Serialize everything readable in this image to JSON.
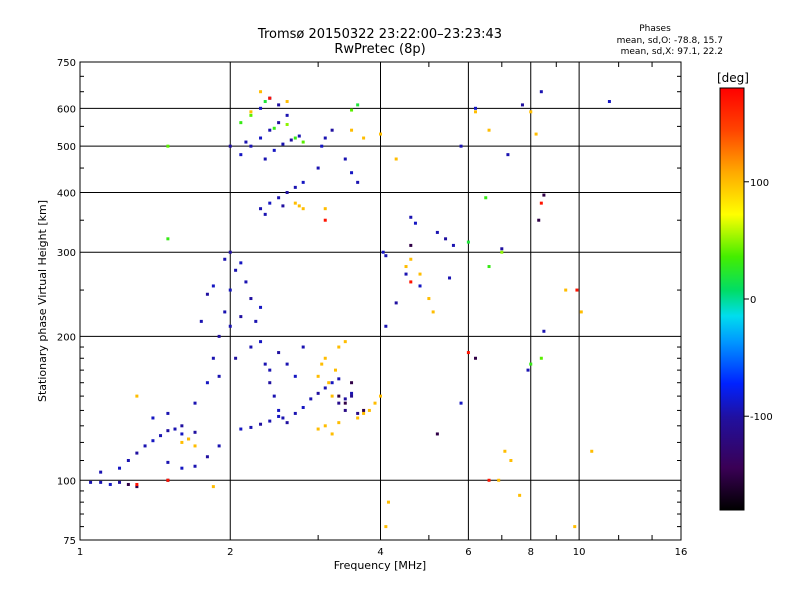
{
  "chart_data": {
    "type": "scatter",
    "title": "Tromsø 20150322 23:22:00–23:23:43",
    "subtitle": "RwPretec (8p)",
    "xlabel": "Frequency [MHz]",
    "ylabel": "Stationary phase Virtual Height [km]",
    "x_scale": "log",
    "y_scale": "log",
    "xlim": [
      1,
      16
    ],
    "ylim": [
      75,
      750
    ],
    "x_ticks": [
      1,
      2,
      4,
      6,
      8,
      10,
      16
    ],
    "y_ticks": [
      75,
      100,
      200,
      300,
      400,
      500,
      600,
      750
    ],
    "grid": true,
    "colorbar": {
      "label": "[deg]",
      "range": [
        -180,
        180
      ],
      "ticks": [
        100,
        0,
        -100
      ]
    },
    "legend": {
      "title": "Phases",
      "line1": "mean, sd,O: -78.8, 15.7",
      "line2": "mean, sd,X:  97.1, 22.2"
    },
    "series": [
      {
        "values": [
          [
            1.05,
            99,
            -95
          ],
          [
            1.1,
            99,
            -95
          ],
          [
            1.15,
            98,
            -90
          ],
          [
            1.2,
            99,
            -100
          ],
          [
            1.1,
            104,
            -95
          ],
          [
            1.2,
            106,
            -90
          ],
          [
            1.25,
            110,
            -95
          ],
          [
            1.3,
            114,
            -100
          ],
          [
            1.35,
            118,
            -95
          ],
          [
            1.4,
            121,
            -90
          ],
          [
            1.45,
            124,
            -95
          ],
          [
            1.5,
            127,
            -100
          ],
          [
            1.55,
            128,
            -95
          ],
          [
            1.6,
            125,
            -90
          ],
          [
            1.65,
            122,
            -95
          ],
          [
            1.7,
            126,
            -100
          ],
          [
            1.5,
            109,
            -95
          ],
          [
            1.6,
            106,
            -90
          ],
          [
            1.7,
            107,
            -95
          ],
          [
            1.8,
            112,
            -100
          ],
          [
            1.9,
            118,
            -95
          ],
          [
            1.4,
            135,
            -90
          ],
          [
            1.5,
            138,
            -95
          ],
          [
            1.6,
            130,
            -100
          ],
          [
            1.7,
            145,
            -95
          ],
          [
            1.8,
            160,
            -90
          ],
          [
            1.85,
            180,
            -95
          ],
          [
            1.9,
            200,
            -100
          ],
          [
            1.95,
            225,
            -95
          ],
          [
            2.0,
            250,
            -90
          ],
          [
            2.05,
            275,
            -95
          ],
          [
            2.0,
            300,
            -100
          ],
          [
            1.95,
            290,
            -95
          ],
          [
            2.1,
            285,
            -90
          ],
          [
            2.15,
            260,
            -95
          ],
          [
            2.2,
            240,
            -100
          ],
          [
            2.25,
            215,
            -95
          ],
          [
            2.3,
            195,
            -90
          ],
          [
            2.35,
            175,
            -95
          ],
          [
            2.4,
            160,
            -100
          ],
          [
            2.45,
            150,
            -95
          ],
          [
            2.5,
            140,
            -90
          ],
          [
            2.55,
            135,
            -95
          ],
          [
            2.6,
            132,
            -100
          ],
          [
            2.7,
            138,
            -95
          ],
          [
            2.8,
            142,
            -90
          ],
          [
            2.9,
            148,
            -95
          ],
          [
            3.0,
            152,
            -100
          ],
          [
            3.1,
            156,
            -95
          ],
          [
            3.2,
            160,
            -90
          ],
          [
            3.3,
            163,
            -95
          ],
          [
            3.4,
            148,
            -100
          ],
          [
            3.5,
            152,
            -95
          ],
          [
            2.1,
            128,
            -90
          ],
          [
            2.2,
            129,
            -95
          ],
          [
            2.3,
            131,
            -100
          ],
          [
            2.4,
            133,
            -95
          ],
          [
            2.5,
            136,
            -90
          ],
          [
            2.0,
            210,
            -95
          ],
          [
            2.1,
            220,
            -100
          ],
          [
            2.2,
            190,
            -95
          ],
          [
            2.3,
            230,
            -90
          ],
          [
            2.4,
            170,
            -95
          ],
          [
            2.5,
            185,
            -100
          ],
          [
            2.6,
            175,
            -95
          ],
          [
            2.7,
            165,
            -90
          ],
          [
            2.8,
            190,
            -95
          ],
          [
            1.8,
            245,
            -100
          ],
          [
            1.75,
            215,
            -95
          ],
          [
            1.85,
            255,
            -90
          ],
          [
            1.9,
            165,
            -95
          ],
          [
            2.05,
            180,
            -100
          ],
          [
            2.2,
            500,
            -95
          ],
          [
            2.3,
            520,
            -90
          ],
          [
            2.4,
            540,
            -95
          ],
          [
            2.5,
            560,
            -100
          ],
          [
            2.6,
            580,
            -95
          ],
          [
            2.3,
            600,
            -90
          ],
          [
            2.4,
            630,
            -95
          ],
          [
            2.5,
            610,
            -100
          ],
          [
            2.35,
            470,
            -95
          ],
          [
            2.45,
            490,
            -90
          ],
          [
            2.55,
            505,
            -95
          ],
          [
            2.65,
            515,
            -100
          ],
          [
            2.75,
            525,
            -95
          ],
          [
            2.1,
            480,
            -90
          ],
          [
            2.15,
            510,
            -95
          ],
          [
            2.0,
            500,
            -100
          ],
          [
            2.3,
            370,
            -95
          ],
          [
            2.4,
            380,
            -90
          ],
          [
            2.5,
            390,
            -95
          ],
          [
            2.6,
            400,
            -100
          ],
          [
            2.7,
            410,
            -95
          ],
          [
            2.8,
            420,
            -90
          ],
          [
            2.35,
            360,
            -95
          ],
          [
            2.55,
            375,
            -100
          ],
          [
            3.0,
            450,
            -95
          ],
          [
            3.05,
            500,
            -90
          ],
          [
            3.1,
            520,
            -95
          ],
          [
            3.2,
            540,
            -100
          ],
          [
            3.4,
            470,
            -95
          ],
          [
            3.5,
            440,
            -90
          ],
          [
            3.6,
            420,
            -95
          ],
          [
            4.6,
            355,
            -95
          ],
          [
            4.7,
            345,
            -90
          ],
          [
            5.2,
            330,
            -95
          ],
          [
            5.4,
            320,
            -100
          ],
          [
            5.6,
            310,
            -95
          ],
          [
            4.05,
            300,
            -90
          ],
          [
            4.1,
            295,
            -95
          ],
          [
            5.8,
            500,
            -95
          ],
          [
            6.2,
            600,
            -90
          ],
          [
            7.2,
            480,
            -95
          ],
          [
            7.7,
            610,
            -100
          ],
          [
            8.4,
            650,
            -95
          ],
          [
            11.5,
            620,
            -90
          ],
          [
            4.1,
            210,
            -95
          ],
          [
            4.3,
            235,
            -100
          ],
          [
            4.5,
            270,
            -95
          ],
          [
            4.8,
            255,
            -90
          ],
          [
            5.5,
            265,
            -95
          ],
          [
            7.0,
            305,
            -100
          ],
          [
            8.5,
            205,
            -95
          ],
          [
            5.8,
            145,
            -90
          ],
          [
            7.9,
            170,
            -95
          ],
          [
            3.3,
            145,
            -110
          ],
          [
            3.4,
            140,
            -115
          ],
          [
            3.5,
            150,
            -110
          ],
          [
            3.6,
            138,
            -115
          ]
        ]
      },
      {
        "values": [
          [
            3.0,
            165,
            100
          ],
          [
            3.05,
            175,
            100
          ],
          [
            3.1,
            180,
            100
          ],
          [
            3.15,
            160,
            100
          ],
          [
            3.2,
            150,
            100
          ],
          [
            3.25,
            170,
            100
          ],
          [
            3.0,
            128,
            100
          ],
          [
            3.1,
            130,
            100
          ],
          [
            3.2,
            125,
            100
          ],
          [
            3.3,
            132,
            100
          ],
          [
            3.6,
            135,
            100
          ],
          [
            3.7,
            138,
            100
          ],
          [
            3.8,
            140,
            100
          ],
          [
            3.9,
            145,
            100
          ],
          [
            4.0,
            150,
            100
          ],
          [
            3.3,
            190,
            100
          ],
          [
            3.4,
            195,
            100
          ],
          [
            1.6,
            120,
            100
          ],
          [
            1.65,
            122,
            100
          ],
          [
            1.7,
            118,
            100
          ],
          [
            2.2,
            590,
            100
          ],
          [
            2.3,
            650,
            100
          ],
          [
            2.6,
            620,
            100
          ],
          [
            2.7,
            380,
            100
          ],
          [
            2.75,
            375,
            100
          ],
          [
            2.8,
            370,
            100
          ],
          [
            3.1,
            370,
            100
          ],
          [
            3.5,
            540,
            100
          ],
          [
            3.7,
            520,
            100
          ],
          [
            4.0,
            530,
            100
          ],
          [
            4.3,
            470,
            100
          ],
          [
            4.5,
            280,
            100
          ],
          [
            4.6,
            290,
            100
          ],
          [
            4.8,
            270,
            100
          ],
          [
            5.0,
            240,
            100
          ],
          [
            5.1,
            225,
            100
          ],
          [
            6.2,
            590,
            100
          ],
          [
            6.6,
            540,
            100
          ],
          [
            8.0,
            590,
            100
          ],
          [
            8.2,
            530,
            100
          ],
          [
            7.1,
            115,
            100
          ],
          [
            7.3,
            110,
            100
          ],
          [
            7.6,
            93,
            100
          ],
          [
            6.9,
            100,
            100
          ],
          [
            9.4,
            250,
            100
          ],
          [
            10.1,
            225,
            100
          ],
          [
            10.6,
            115,
            100
          ],
          [
            9.8,
            80,
            100
          ],
          [
            4.1,
            80,
            100
          ],
          [
            4.15,
            90,
            100
          ],
          [
            1.3,
            150,
            100
          ],
          [
            1.85,
            97,
            100
          ]
        ]
      },
      {
        "values": [
          [
            2.1,
            560,
            30
          ],
          [
            2.2,
            580,
            40
          ],
          [
            2.35,
            620,
            20
          ],
          [
            2.45,
            545,
            30
          ],
          [
            2.6,
            555,
            50
          ],
          [
            2.7,
            520,
            30
          ],
          [
            2.8,
            510,
            40
          ],
          [
            3.6,
            610,
            20
          ],
          [
            3.5,
            595,
            40
          ],
          [
            6.5,
            390,
            30
          ],
          [
            7.0,
            300,
            50
          ],
          [
            6.6,
            280,
            30
          ],
          [
            8.4,
            180,
            40
          ],
          [
            8.0,
            175,
            30
          ],
          [
            1.5,
            500,
            40
          ],
          [
            1.5,
            320,
            30
          ],
          [
            6.0,
            315,
            20
          ]
        ]
      },
      {
        "values": [
          [
            1.25,
            98,
            -150
          ],
          [
            1.3,
            97,
            -150
          ],
          [
            1.5,
            100,
            -150
          ],
          [
            3.3,
            150,
            -150
          ],
          [
            3.4,
            145,
            -150
          ],
          [
            3.5,
            160,
            -150
          ],
          [
            3.7,
            140,
            -150
          ],
          [
            6.2,
            180,
            -150
          ],
          [
            8.5,
            395,
            -150
          ],
          [
            8.3,
            350,
            -150
          ],
          [
            4.6,
            310,
            -150
          ],
          [
            5.2,
            125,
            -150
          ]
        ]
      },
      {
        "values": [
          [
            1.3,
            98,
            170
          ],
          [
            1.5,
            100,
            170
          ],
          [
            6.6,
            100,
            170
          ],
          [
            6.0,
            185,
            170
          ],
          [
            8.4,
            380,
            170
          ],
          [
            2.4,
            630,
            170
          ],
          [
            3.1,
            350,
            170
          ],
          [
            4.6,
            260,
            170
          ],
          [
            9.9,
            250,
            170
          ]
        ]
      }
    ]
  }
}
